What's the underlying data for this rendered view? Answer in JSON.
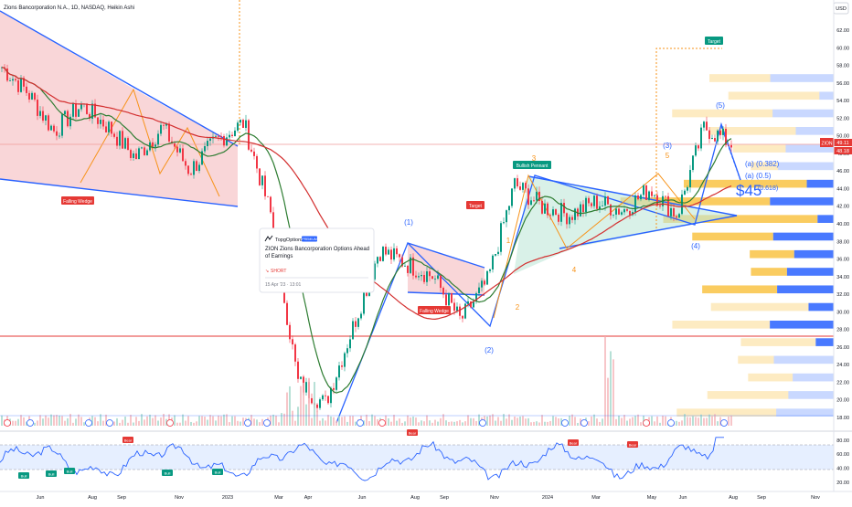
{
  "header": {
    "title": "Zions Bancorporation N.A., 1D, NASDAQ, Heikin Ashi",
    "currency": "USD"
  },
  "chart_data": [
    {
      "type": "line",
      "title": "Zions Bancorporation N.A., 1D, NASDAQ, Heikin Ashi",
      "x_labels": [
        "Jun",
        "Aug",
        "Sep",
        "Nov",
        "2023",
        "Mar",
        "Apr",
        "Jun",
        "Aug",
        "Sep",
        "Nov",
        "2024",
        "Mar",
        "May",
        "Jun",
        "Aug",
        "Sep",
        "Nov"
      ],
      "y_ticks": [
        18.0,
        20.0,
        22.0,
        24.0,
        26.0,
        28.0,
        30.0,
        32.0,
        34.0,
        36.0,
        38.0,
        40.0,
        42.0,
        44.0,
        46.0,
        48.0,
        50.0,
        52.0,
        54.0,
        56.0,
        58.0,
        60.0,
        62.0
      ],
      "ylim": [
        17,
        64
      ],
      "price_path": [
        [
          "2022-05",
          58.0
        ],
        [
          "2022-06",
          55.0
        ],
        [
          "2022-07",
          50.5
        ],
        [
          "2022-08",
          53.5
        ],
        [
          "2022-09",
          51.0
        ],
        [
          "2022-10",
          47.5
        ],
        [
          "2022-11",
          51.0
        ],
        [
          "2022-12",
          46.0
        ],
        [
          "2023-01",
          49.5
        ],
        [
          "2023-02",
          51.5
        ],
        [
          "2023-03",
          41.0
        ],
        [
          "2023-04",
          22.0
        ],
        [
          "2023-05",
          19.5
        ],
        [
          "2023-06",
          28.0
        ],
        [
          "2023-07",
          37.0
        ],
        [
          "2023-08",
          35.5
        ],
        [
          "2023-09",
          34.0
        ],
        [
          "2023-10",
          29.0
        ],
        [
          "2023-11",
          33.5
        ],
        [
          "2023-12",
          44.5
        ],
        [
          "2024-01",
          42.0
        ],
        [
          "2024-02",
          41.0
        ],
        [
          "2024-03",
          42.5
        ],
        [
          "2024-04",
          41.5
        ],
        [
          "2024-05",
          44.0
        ],
        [
          "2024-06",
          41.0
        ],
        [
          "2024-07",
          51.0
        ],
        [
          "2024-07-end",
          49.1
        ]
      ],
      "last_price": "49.11",
      "last_price_2": "48.18",
      "ticker_tag": "ZION",
      "patterns": [
        {
          "label": "Falling Wedge"
        },
        {
          "label": "Falling Wedge"
        },
        {
          "label": "Bullish Pennant"
        },
        {
          "label": "Target"
        },
        {
          "label": "Target"
        }
      ],
      "elliott_waves": {
        "blue": [
          "(1)",
          "(2)",
          "(3)",
          "(4)",
          "(5)"
        ],
        "orange": [
          "1",
          "2",
          "3",
          "4",
          "5"
        ]
      },
      "fib_labels": [
        "(a) (0.382)",
        "(a) (0.5)",
        "(0.618)"
      ],
      "target_price_text": "$45",
      "horizontal_levels": [
        27.3,
        49.0
      ]
    },
    {
      "type": "line",
      "title": "",
      "y_ticks": [
        80.0,
        60.0,
        40.0,
        20.0
      ],
      "ylim": [
        15,
        88
      ],
      "overbought": 70,
      "oversold": 30,
      "signals": [
        "Bull",
        "Bull",
        "Bull",
        "Bull",
        "Bull",
        "Bear",
        "Bear",
        "Bear",
        "Bear"
      ]
    }
  ],
  "idea_card": {
    "author": "TopgOptions",
    "badge": "PREMIUM",
    "title": "ZION Zions Bancorporation  Options Ahead of Earnings",
    "direction": "SHORT",
    "date": "15 Apr '23 · 13:01"
  }
}
